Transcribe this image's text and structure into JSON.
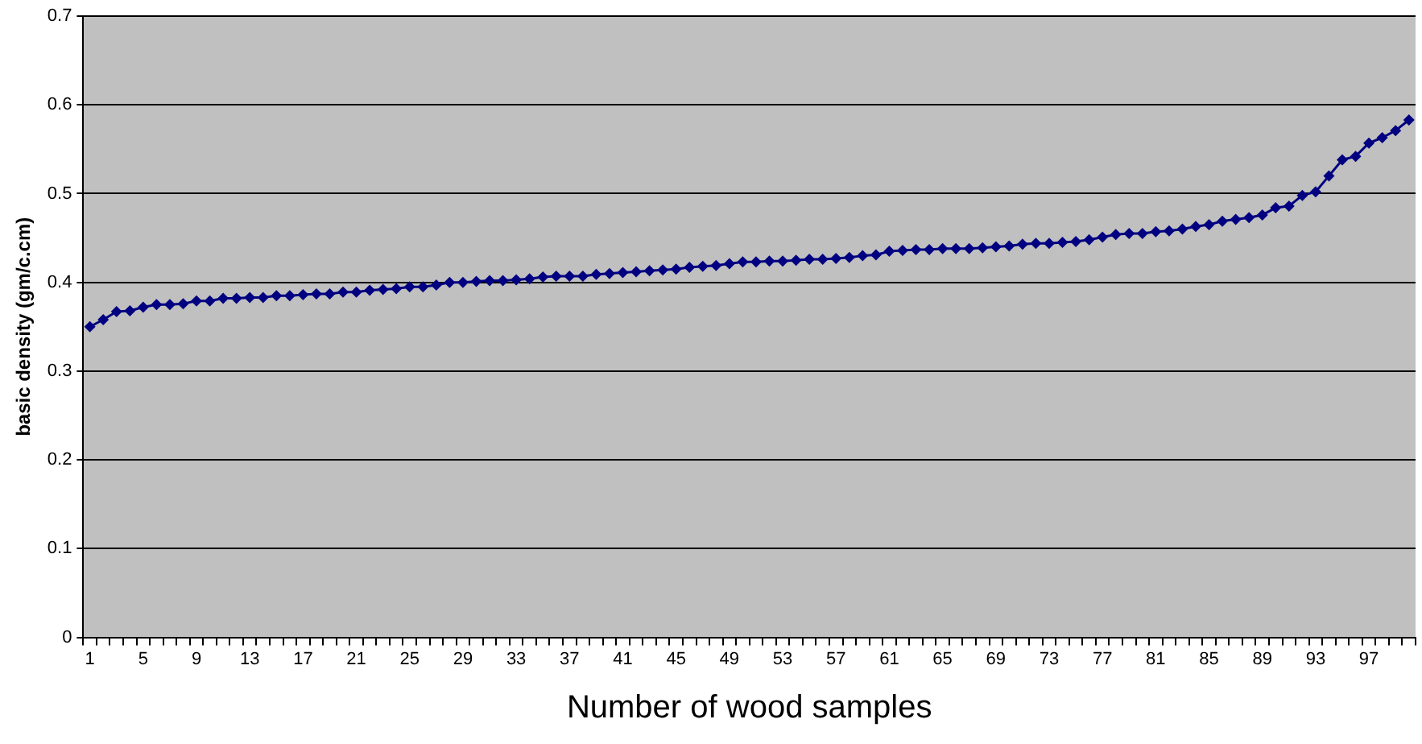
{
  "chart_data": {
    "type": "line",
    "xlabel": "Number of wood samples",
    "ylabel": "basic density (gm/c.cm)",
    "categories": [
      "1",
      null,
      null,
      null,
      "5",
      null,
      null,
      null,
      "9",
      null,
      null,
      null,
      "13",
      null,
      null,
      null,
      "17",
      null,
      null,
      null,
      "21",
      null,
      null,
      null,
      "25",
      null,
      null,
      null,
      "29",
      null,
      null,
      null,
      "33",
      null,
      null,
      null,
      "37",
      null,
      null,
      null,
      "41",
      null,
      null,
      null,
      "45",
      null,
      null,
      null,
      "49",
      null,
      null,
      null,
      "53",
      null,
      null,
      null,
      "57",
      null,
      null,
      null,
      "61",
      null,
      null,
      null,
      "65",
      null,
      null,
      null,
      "69",
      null,
      null,
      null,
      "73",
      null,
      null,
      null,
      "77",
      null,
      null,
      null,
      "81",
      null,
      null,
      null,
      "85",
      null,
      null,
      null,
      "89",
      null,
      null,
      null,
      "93",
      null,
      null,
      null,
      "97",
      null,
      null,
      null
    ],
    "series": [
      {
        "color": "#000080",
        "values": [
          0.35,
          0.358,
          0.367,
          0.368,
          0.372,
          0.375,
          0.375,
          0.376,
          0.379,
          0.379,
          0.382,
          0.382,
          0.383,
          0.383,
          0.385,
          0.385,
          0.386,
          0.387,
          0.387,
          0.389,
          0.389,
          0.391,
          0.392,
          0.393,
          0.395,
          0.395,
          0.397,
          0.4,
          0.4,
          0.401,
          0.402,
          0.402,
          0.403,
          0.404,
          0.406,
          0.407,
          0.407,
          0.407,
          0.409,
          0.41,
          0.411,
          0.412,
          0.413,
          0.414,
          0.415,
          0.417,
          0.418,
          0.419,
          0.421,
          0.423,
          0.423,
          0.424,
          0.424,
          0.425,
          0.426,
          0.426,
          0.427,
          0.428,
          0.43,
          0.431,
          0.435,
          0.436,
          0.437,
          0.437,
          0.438,
          0.438,
          0.438,
          0.439,
          0.44,
          0.441,
          0.443,
          0.444,
          0.444,
          0.445,
          0.446,
          0.448,
          0.451,
          0.454,
          0.455,
          0.455,
          0.457,
          0.458,
          0.46,
          0.463,
          0.465,
          0.469,
          0.471,
          0.473,
          0.476,
          0.484,
          0.486,
          0.498,
          0.502,
          0.52,
          0.538,
          0.542,
          0.557,
          0.563,
          0.571,
          0.583
        ]
      }
    ],
    "ylim": [
      0,
      0.7
    ],
    "yticks": [
      0,
      0.1,
      0.2,
      0.3,
      0.4,
      0.5,
      0.6,
      0.7
    ],
    "grid": "y",
    "legend": false,
    "marker": "diamond",
    "line_style": "solid"
  }
}
